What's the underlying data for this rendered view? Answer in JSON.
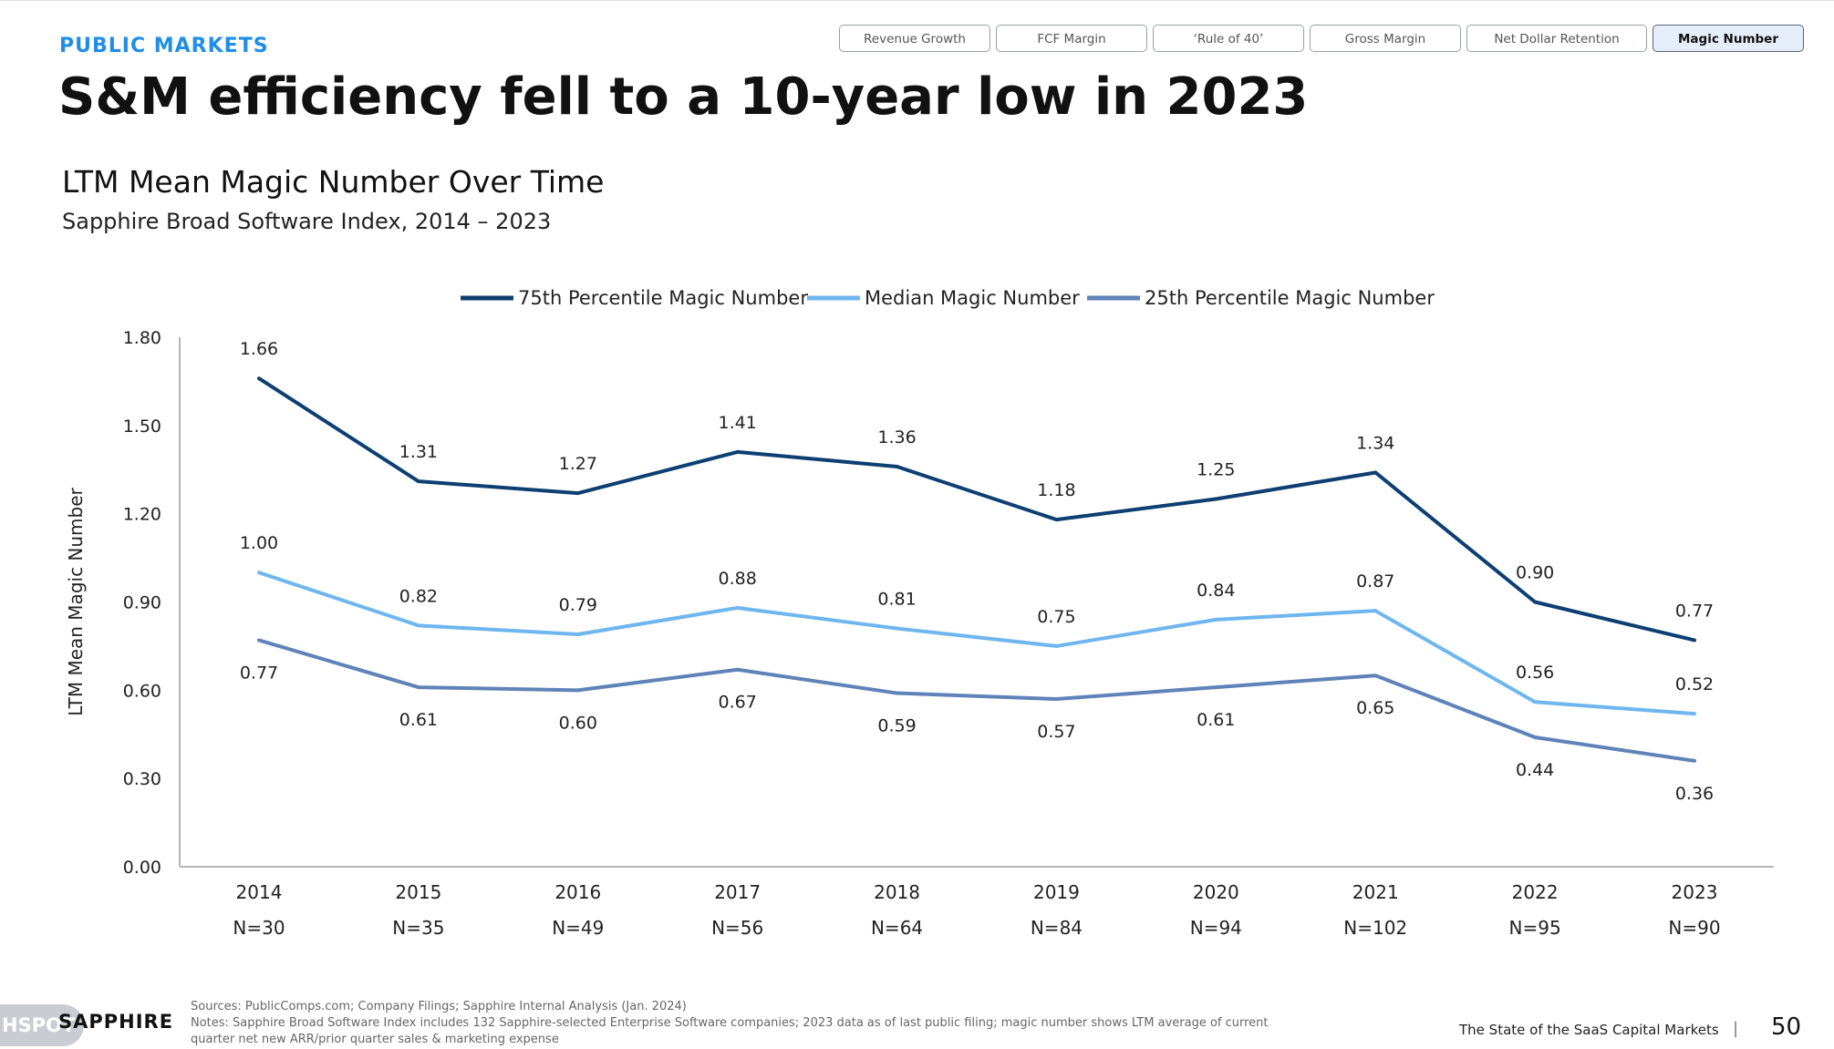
{
  "header": {
    "section_label": "PUBLIC MARKETS",
    "headline": "S&M efficiency fell to a 10-year low in 2023"
  },
  "tabs": [
    {
      "label": "Revenue Growth",
      "active": false
    },
    {
      "label": "FCF Margin",
      "active": false
    },
    {
      "label": "‘Rule of 40’",
      "active": false
    },
    {
      "label": "Gross Margin",
      "active": false
    },
    {
      "label": "Net Dollar Retention",
      "active": false
    },
    {
      "label": "Magic Number",
      "active": true
    }
  ],
  "chart_data": {
    "type": "line",
    "title": "LTM Mean Magic Number Over Time",
    "subtitle": "Sapphire Broad Software Index, 2014 – 2023",
    "ylabel": "LTM Mean Magic Number",
    "xlabel": "",
    "ylim": [
      0,
      1.8
    ],
    "yticks": [
      "0.00",
      "0.30",
      "0.60",
      "0.90",
      "1.20",
      "1.50",
      "1.80"
    ],
    "grid": false,
    "legend_position": "top-center",
    "categories": [
      "2014",
      "2015",
      "2016",
      "2017",
      "2018",
      "2019",
      "2020",
      "2021",
      "2022",
      "2023"
    ],
    "sample_sizes": [
      "N=30",
      "N=35",
      "N=49",
      "N=56",
      "N=64",
      "N=84",
      "N=94",
      "N=102",
      "N=95",
      "N=90"
    ],
    "series": [
      {
        "name": "75th Percentile Magic Number",
        "color": "#0d3f73",
        "values": [
          1.66,
          1.31,
          1.27,
          1.41,
          1.36,
          1.18,
          1.25,
          1.34,
          0.9,
          0.77
        ],
        "labels": [
          "1.66",
          "1.31",
          "1.27",
          "1.41",
          "1.36",
          "1.18",
          "1.25",
          "1.34",
          "0.90",
          "0.77"
        ]
      },
      {
        "name": "Median Magic Number",
        "color": "#6fb6ef",
        "values": [
          1.0,
          0.82,
          0.79,
          0.88,
          0.81,
          0.75,
          0.84,
          0.87,
          0.56,
          0.52
        ],
        "labels": [
          "1.00",
          "0.82",
          "0.79",
          "0.88",
          "0.81",
          "0.75",
          "0.84",
          "0.87",
          "0.56",
          "0.52"
        ]
      },
      {
        "name": "25th Percentile Magic Number",
        "color": "#5f83b8",
        "values": [
          0.77,
          0.61,
          0.6,
          0.67,
          0.59,
          0.57,
          0.61,
          0.65,
          0.44,
          0.36
        ],
        "labels": [
          "0.77",
          "0.61",
          "0.60",
          "0.67",
          "0.59",
          "0.57",
          "0.61",
          "0.65",
          "0.44",
          "0.36"
        ]
      }
    ]
  },
  "footer": {
    "logo_text": "HSPOT",
    "brand": "SAPPHIRE",
    "sources": "Sources: PublicComps.com; Company Filings; Sapphire Internal Analysis (Jan. 2024)",
    "notes_line1": "Notes: Sapphire Broad Software Index includes 132 Sapphire-selected Enterprise Software companies; 2023 data as of last public filing; magic number shows LTM average of current",
    "notes_line2": "quarter net new ARR/prior quarter sales & marketing expense",
    "report_title": "The State of the SaaS Capital Markets",
    "separator": "|",
    "page_number": "50"
  }
}
